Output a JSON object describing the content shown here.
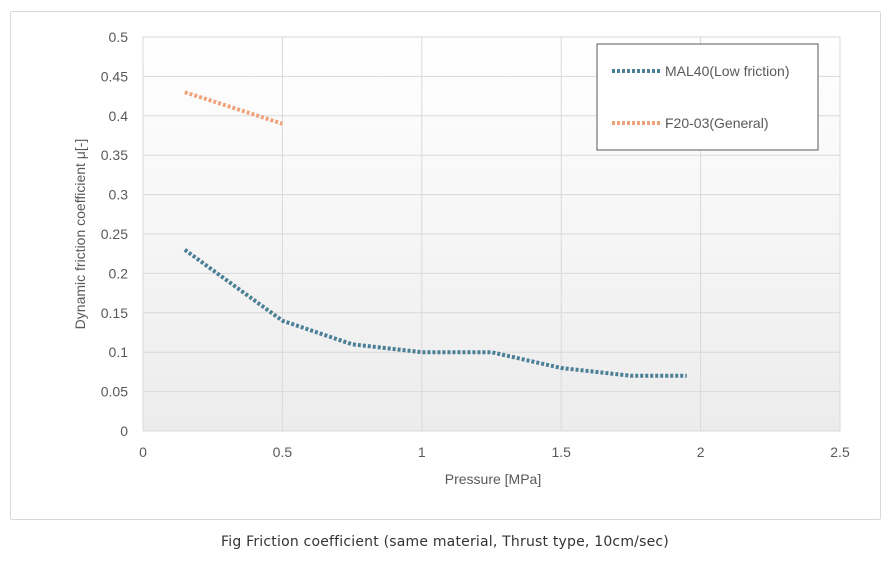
{
  "chart_data": {
    "type": "line",
    "title": "",
    "xlabel": "Pressure [MPa]",
    "ylabel": "Dynamic friction coefficient  μ[-]",
    "xlim": [
      0,
      2.5
    ],
    "ylim": [
      0,
      0.5
    ],
    "x_ticks": [
      "0",
      "0.5",
      "1",
      "1.5",
      "2",
      "2.5"
    ],
    "y_ticks": [
      "0",
      "0.05",
      "0.1",
      "0.15",
      "0.2",
      "0.25",
      "0.3",
      "0.35",
      "0.4",
      "0.45",
      "0.5"
    ],
    "grid": true,
    "legend_position": "top-right",
    "series": [
      {
        "name": "MAL40(Low friction)",
        "color": "#4a7f96",
        "line_style": "dotted",
        "x": [
          0.15,
          0.5,
          0.75,
          1.0,
          1.25,
          1.5,
          1.75,
          1.95
        ],
        "y": [
          0.23,
          0.14,
          0.11,
          0.1,
          0.1,
          0.08,
          0.07,
          0.07
        ]
      },
      {
        "name": "F20-03(General)",
        "color": "#f0a37a",
        "line_style": "dotted",
        "x": [
          0.15,
          0.5
        ],
        "y": [
          0.43,
          0.39
        ]
      }
    ]
  },
  "caption": "Fig Friction coefficient (same material, Thrust type, 10cm/sec)"
}
